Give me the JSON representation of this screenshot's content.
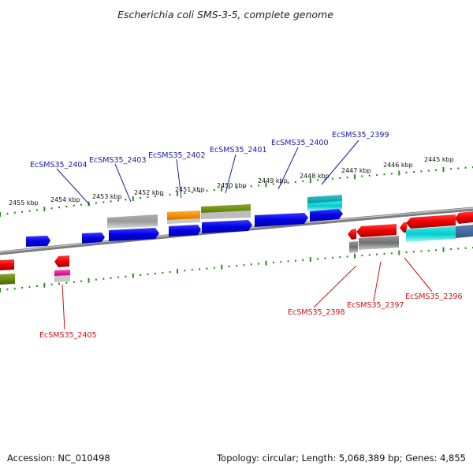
{
  "title": "Escherichia coli SMS-3-5, complete genome",
  "footer": {
    "accession": "Accession: NC_010498",
    "summary": "Topology: circular; Length: 5,068,389 bp; Genes: 4,855"
  },
  "tick_labels": [
    "2455 kbp",
    "2454 kbp",
    "2453 kbp",
    "2452 kbp",
    "2451 kbp",
    "2450 kbp",
    "2449 kbp",
    "2448 kbp",
    "2447 kbp",
    "2446 kbp",
    "2445 kbp"
  ],
  "upper_gene_labels": [
    "EcSMS35_2404",
    "EcSMS35_2403",
    "EcSMS35_2402",
    "EcSMS35_2401",
    "EcSMS35_2400",
    "EcSMS35_2399"
  ],
  "lower_gene_labels": [
    "EcSMS35_2405",
    "EcSMS35_2398",
    "EcSMS35_2397",
    "EcSMS35_2396"
  ],
  "colors": {
    "forward_label": "#1a1aa8",
    "reverse_label": "#cc1111",
    "ticks": "#2e8b1f",
    "backbone": "#8a8a8a"
  }
}
